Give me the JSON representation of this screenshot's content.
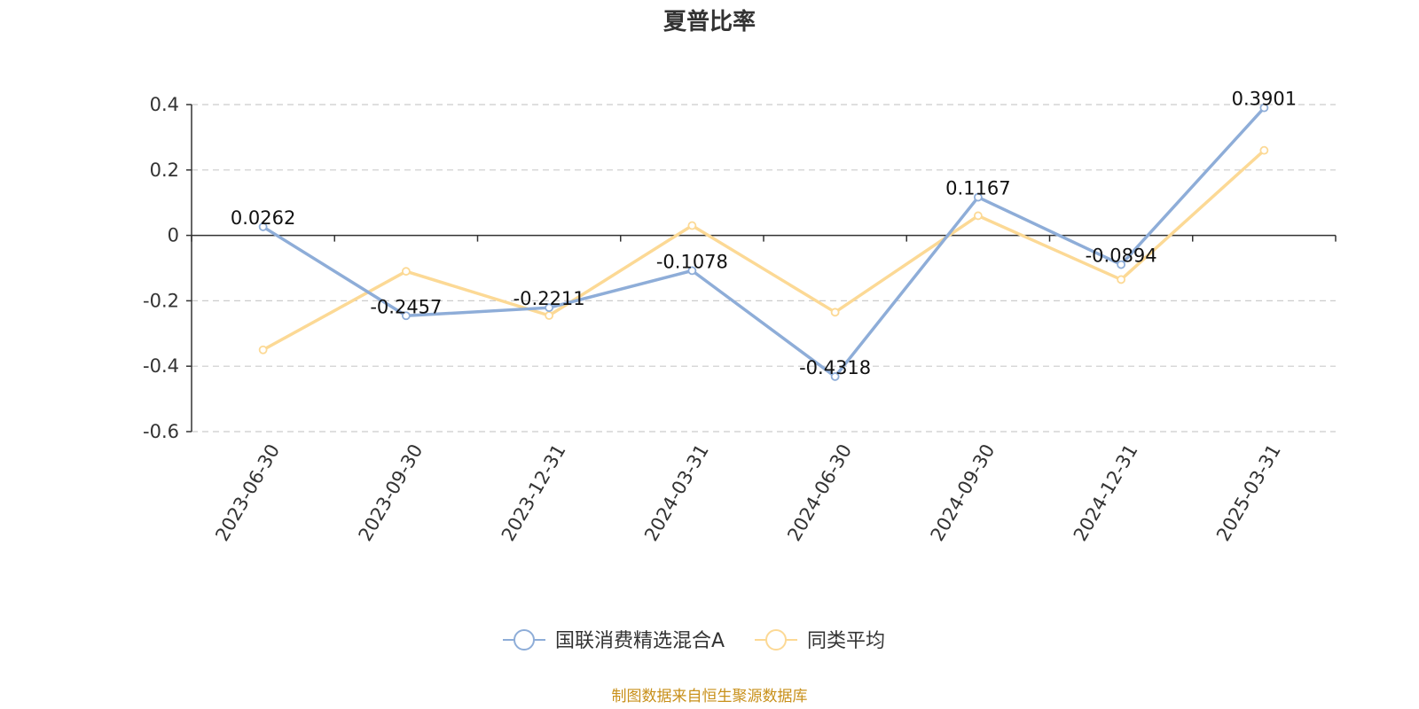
{
  "chart_data": {
    "type": "line",
    "title": "夏普比率",
    "categories": [
      "2023-06-30",
      "2023-09-30",
      "2023-12-31",
      "2024-03-31",
      "2024-06-30",
      "2024-09-30",
      "2024-12-31",
      "2025-03-31"
    ],
    "ylim": [
      -0.6,
      0.4
    ],
    "yticks": [
      0.4,
      0.2,
      0,
      -0.2,
      -0.4,
      -0.6
    ],
    "ytick_labels": [
      "0.4",
      "0.2",
      "0",
      "-0.2",
      "-0.4",
      "-0.6"
    ],
    "grid": true,
    "legend_position": "bottom",
    "series": [
      {
        "name": "国联消费精选混合A",
        "color": "#8eadd8",
        "values": [
          0.0262,
          -0.2457,
          -0.2211,
          -0.1078,
          -0.4318,
          0.1167,
          -0.0894,
          0.3901
        ],
        "data_labels": [
          "0.0262",
          "-0.2457",
          "-0.2211",
          "-0.1078",
          "-0.4318",
          "0.1167",
          "-0.0894",
          "0.3901"
        ]
      },
      {
        "name": "同类平均",
        "color": "#fcd995",
        "values": [
          -0.35,
          -0.11,
          -0.245,
          0.03,
          -0.235,
          0.06,
          -0.135,
          0.26
        ]
      }
    ]
  },
  "footer": {
    "source": "制图数据来自恒生聚源数据库"
  }
}
